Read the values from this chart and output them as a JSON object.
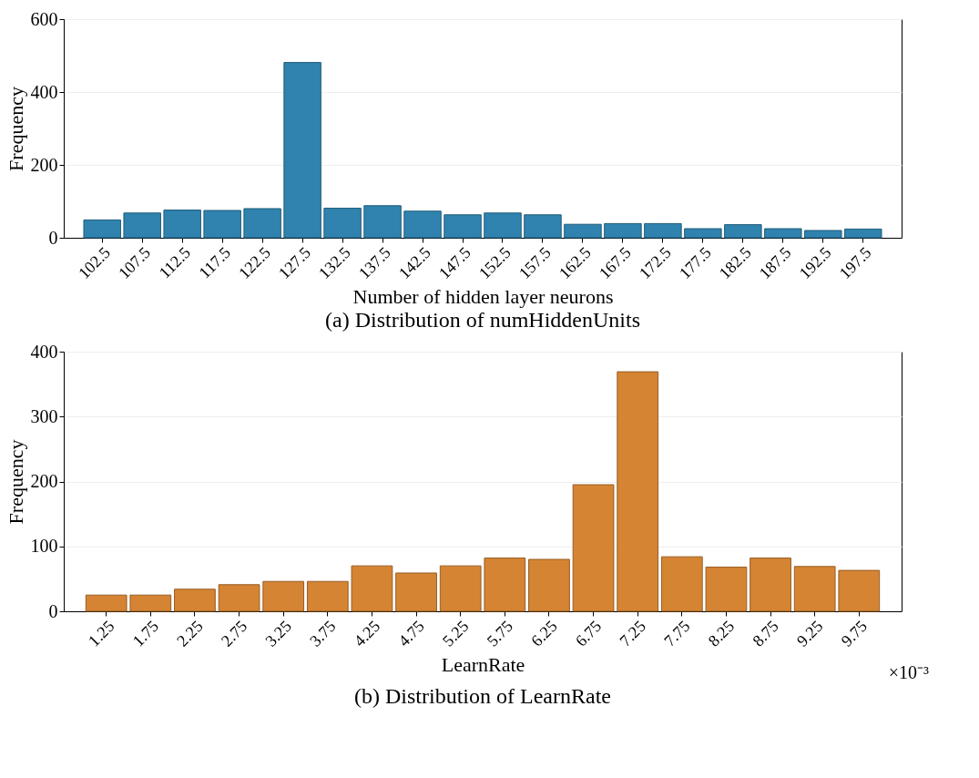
{
  "chart_data": [
    {
      "type": "bar",
      "title": "(a) Distribution of numHiddenUnits",
      "xlabel": "Number of hidden layer neurons",
      "ylabel": "Frequency",
      "categories": [
        "102.5",
        "107.5",
        "112.5",
        "117.5",
        "122.5",
        "127.5",
        "132.5",
        "137.5",
        "142.5",
        "147.5",
        "152.5",
        "157.5",
        "162.5",
        "167.5",
        "172.5",
        "177.5",
        "182.5",
        "187.5",
        "192.5",
        "197.5"
      ],
      "series": [
        {
          "color": "#2f83ae",
          "values": [
            49,
            68,
            76,
            75,
            80,
            481,
            81,
            88,
            73,
            63,
            68,
            63,
            37,
            39,
            39,
            25,
            36,
            25,
            20,
            24
          ]
        }
      ],
      "ylim": [
        0,
        600
      ],
      "yticks": [
        0,
        200,
        400,
        600
      ],
      "grid": "y"
    },
    {
      "type": "bar",
      "title": "(b) Distribution of LearnRate",
      "xlabel": "LearnRate",
      "ylabel": "Frequency",
      "categories": [
        "1.25",
        "1.75",
        "2.25",
        "2.75",
        "3.25",
        "3.75",
        "4.25",
        "4.75",
        "5.25",
        "5.75",
        "6.25",
        "6.75",
        "7.25",
        "7.75",
        "8.25",
        "8.75",
        "9.25",
        "9.75"
      ],
      "series": [
        {
          "color": "#d58433",
          "values": [
            25,
            25,
            34,
            41,
            46,
            46,
            70,
            59,
            70,
            82,
            80,
            195,
            369,
            84,
            68,
            82,
            69,
            63
          ]
        }
      ],
      "ylim": [
        0,
        400
      ],
      "yticks": [
        0,
        100,
        200,
        300,
        400
      ],
      "grid": "y",
      "annotations": [
        "×10⁻³"
      ]
    }
  ]
}
